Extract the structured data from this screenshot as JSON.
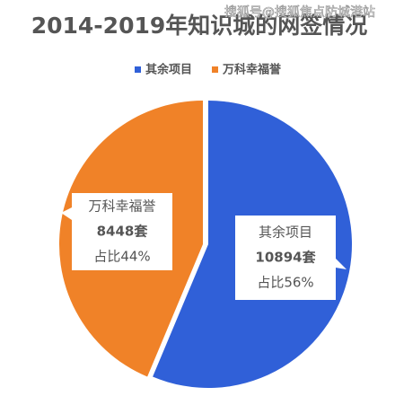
{
  "chart_data": {
    "type": "pie",
    "title": "2014-2019年知识城的网签情况",
    "watermark": "搜狐号@搜狐焦点防城港站",
    "categories": [
      "其余项目",
      "万科幸福誉"
    ],
    "values": [
      10894,
      8448
    ],
    "value_labels": [
      "10894套",
      "8448套"
    ],
    "share_labels": [
      "占比56%",
      "占比44%"
    ],
    "colors": [
      "#3060d8",
      "#f08228"
    ],
    "legend": "top"
  }
}
